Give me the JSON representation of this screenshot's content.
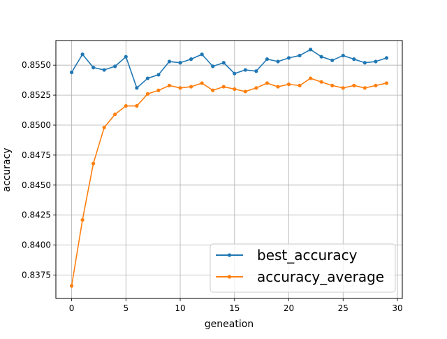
{
  "chart_data": {
    "type": "line",
    "title": "",
    "xlabel": "geneation",
    "ylabel": "accuracy",
    "xlim": [
      -1.45,
      30.45
    ],
    "ylim": [
      0.83555,
      0.85705
    ],
    "xticks": [
      0,
      5,
      10,
      15,
      20,
      25,
      30
    ],
    "xtick_labels": [
      "0",
      "5",
      "10",
      "15",
      "20",
      "25",
      "30"
    ],
    "yticks": [
      0.8375,
      0.84,
      0.8425,
      0.845,
      0.8475,
      0.85,
      0.8525,
      0.855
    ],
    "ytick_labels": [
      "0.8375",
      "0.8400",
      "0.8425",
      "0.8450",
      "0.8475",
      "0.8500",
      "0.8525",
      "0.8550"
    ],
    "grid": true,
    "legend_position": "lower-right",
    "x": [
      0,
      1,
      2,
      3,
      4,
      5,
      6,
      7,
      8,
      9,
      10,
      11,
      12,
      13,
      14,
      15,
      16,
      17,
      18,
      19,
      20,
      21,
      22,
      23,
      24,
      25,
      26,
      27,
      28,
      29
    ],
    "series": [
      {
        "name": "best_accuracy",
        "color": "#1f77b4",
        "marker": "dot",
        "values": [
          0.8544,
          0.8559,
          0.8548,
          0.8546,
          0.8549,
          0.8557,
          0.8531,
          0.8539,
          0.8542,
          0.8553,
          0.8552,
          0.8555,
          0.8559,
          0.8549,
          0.8552,
          0.8543,
          0.8546,
          0.8545,
          0.8555,
          0.8553,
          0.8556,
          0.8558,
          0.8563,
          0.8557,
          0.8554,
          0.8558,
          0.8555,
          0.8552,
          0.8553,
          0.8556
        ]
      },
      {
        "name": "accuracy_average",
        "color": "#ff7f0e",
        "marker": "dot",
        "values": [
          0.8366,
          0.8421,
          0.8468,
          0.8498,
          0.8509,
          0.8516,
          0.8516,
          0.8526,
          0.8529,
          0.8533,
          0.8531,
          0.8532,
          0.8535,
          0.8529,
          0.8532,
          0.853,
          0.8528,
          0.8531,
          0.8535,
          0.8532,
          0.8534,
          0.8533,
          0.8539,
          0.8536,
          0.8533,
          0.8531,
          0.8533,
          0.8531,
          0.8533,
          0.8535
        ]
      }
    ]
  }
}
